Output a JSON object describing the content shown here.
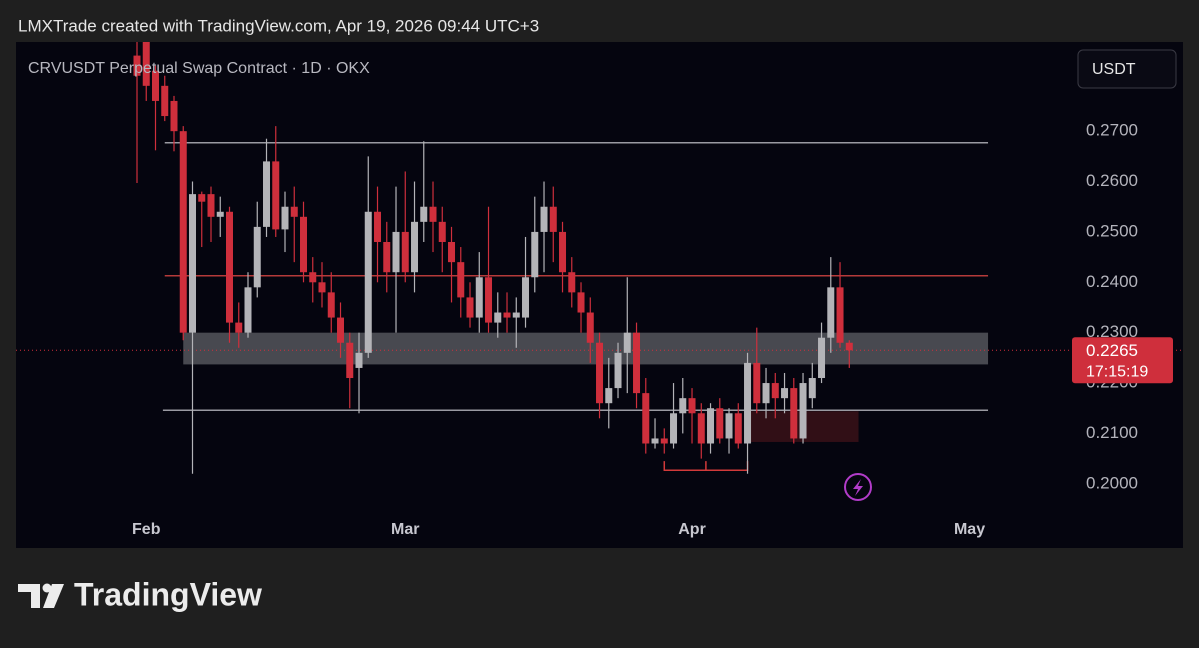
{
  "header": "LMXTrade created with TradingView.com, Apr 19, 2026 09:44 UTC+3",
  "footer": {
    "brand": "TradingView"
  },
  "chart_data": {
    "type": "candlestick",
    "title": "CRVUSDT Perpetual Swap Contract · 1D · OKX",
    "currency_button": "USDT",
    "up_color": "#b4b4b8",
    "down_color": "#cf2f3c",
    "open": [
      0.285,
      0.2877,
      0.282,
      0.279,
      0.276,
      0.27,
      0.23,
      0.2575,
      0.2575,
      0.253,
      0.254,
      0.232,
      0.23,
      0.239,
      0.251,
      0.264,
      0.2505,
      0.255,
      0.253,
      0.242,
      0.24,
      0.238,
      0.233,
      0.228,
      0.223,
      0.226,
      0.254,
      0.248,
      0.242,
      0.25,
      0.242,
      0.252,
      0.255,
      0.252,
      0.248,
      0.244,
      0.237,
      0.233,
      0.241,
      0.232,
      0.234,
      0.233,
      0.233,
      0.241,
      0.25,
      0.255,
      0.25,
      0.242,
      0.238,
      0.234,
      0.228,
      0.216,
      0.219,
      0.226,
      0.23,
      0.218,
      0.208,
      0.209,
      0.208,
      0.214,
      0.217,
      0.214,
      0.208,
      0.215,
      0.209,
      0.214,
      0.208,
      0.224,
      0.216,
      0.22,
      0.217,
      0.219,
      0.209,
      0.217,
      0.221,
      0.229,
      0.239,
      0.228
    ],
    "high": [
      0.2877,
      0.2877,
      0.283,
      0.281,
      0.277,
      0.271,
      0.26,
      0.258,
      0.259,
      0.257,
      0.255,
      0.236,
      0.242,
      0.256,
      0.2685,
      0.271,
      0.258,
      0.259,
      0.256,
      0.245,
      0.244,
      0.242,
      0.236,
      0.23,
      0.23,
      0.265,
      0.259,
      0.252,
      0.259,
      0.262,
      0.26,
      0.268,
      0.26,
      0.255,
      0.251,
      0.247,
      0.24,
      0.246,
      0.255,
      0.238,
      0.238,
      0.237,
      0.249,
      0.257,
      0.26,
      0.259,
      0.252,
      0.245,
      0.24,
      0.237,
      0.23,
      0.225,
      0.228,
      0.241,
      0.232,
      0.221,
      0.213,
      0.211,
      0.22,
      0.221,
      0.219,
      0.216,
      0.216,
      0.217,
      0.215,
      0.216,
      0.226,
      0.231,
      0.223,
      0.222,
      0.222,
      0.221,
      0.222,
      0.224,
      0.232,
      0.245,
      0.244,
      0.2285
    ],
    "low": [
      0.2597,
      0.276,
      0.2662,
      0.272,
      0.266,
      0.2285,
      0.202,
      0.247,
      0.248,
      0.249,
      0.228,
      0.227,
      0.229,
      0.237,
      0.249,
      0.249,
      0.246,
      0.244,
      0.24,
      0.236,
      0.235,
      0.23,
      0.225,
      0.215,
      0.214,
      0.225,
      0.24,
      0.238,
      0.23,
      0.24,
      0.238,
      0.248,
      0.246,
      0.242,
      0.236,
      0.233,
      0.231,
      0.23,
      0.23,
      0.229,
      0.23,
      0.227,
      0.231,
      0.238,
      0.242,
      0.244,
      0.238,
      0.235,
      0.23,
      0.224,
      0.213,
      0.211,
      0.217,
      0.218,
      0.215,
      0.206,
      0.207,
      0.206,
      0.207,
      0.21,
      0.208,
      0.205,
      0.206,
      0.208,
      0.206,
      0.207,
      0.202,
      0.214,
      0.213,
      0.213,
      0.214,
      0.208,
      0.208,
      0.215,
      0.22,
      0.226,
      0.227,
      0.223
    ],
    "close": [
      0.281,
      0.279,
      0.276,
      0.273,
      0.27,
      0.23,
      0.2575,
      0.256,
      0.253,
      0.254,
      0.232,
      0.23,
      0.239,
      0.251,
      0.264,
      0.2505,
      0.255,
      0.253,
      0.242,
      0.24,
      0.238,
      0.233,
      0.228,
      0.221,
      0.226,
      0.254,
      0.248,
      0.242,
      0.25,
      0.242,
      0.252,
      0.255,
      0.252,
      0.248,
      0.244,
      0.237,
      0.233,
      0.241,
      0.232,
      0.234,
      0.233,
      0.234,
      0.241,
      0.25,
      0.255,
      0.25,
      0.242,
      0.238,
      0.234,
      0.228,
      0.216,
      0.219,
      0.226,
      0.23,
      0.218,
      0.208,
      0.209,
      0.208,
      0.214,
      0.217,
      0.214,
      0.208,
      0.215,
      0.209,
      0.214,
      0.208,
      0.224,
      0.216,
      0.22,
      0.217,
      0.219,
      0.209,
      0.22,
      0.221,
      0.229,
      0.239,
      0.228,
      0.2265
    ],
    "xlim": [
      -13.08,
      100.86
    ],
    "xticks": [
      {
        "value": 1,
        "label": "Feb"
      },
      {
        "value": 29,
        "label": "Mar"
      },
      {
        "value": 60,
        "label": "Apr"
      },
      {
        "value": 90,
        "label": "May"
      }
    ],
    "ylim": [
      0.1948,
      0.2877
    ],
    "yticks": [
      {
        "value": 0.2,
        "label": "0.2000"
      },
      {
        "value": 0.21,
        "label": "0.2100"
      },
      {
        "value": 0.22,
        "label": "0.2200"
      },
      {
        "value": 0.23,
        "label": "0.2300"
      },
      {
        "value": 0.24,
        "label": "0.2400"
      },
      {
        "value": 0.25,
        "label": "0.2500"
      },
      {
        "value": 0.26,
        "label": "0.2600"
      },
      {
        "value": 0.27,
        "label": "0.2700"
      }
    ],
    "levels": [
      {
        "value": 0.2677,
        "from": 3,
        "to": 92,
        "color": "#9a9aa2"
      },
      {
        "value": 0.2413,
        "from": 3,
        "to": 92,
        "color": "#b53a3a"
      },
      {
        "value": 0.2146,
        "from": 2.8,
        "to": 92,
        "color": "#9a9aa2"
      }
    ],
    "zones": [
      {
        "low": 0.2237,
        "high": 0.23,
        "from": 5,
        "to": 92,
        "color": "#55565c"
      },
      {
        "low": 0.2083,
        "high": 0.2144,
        "from": 66,
        "to": 78,
        "color": "#3a1218"
      }
    ],
    "bracket": {
      "value": 0.2027,
      "top": 0.2045,
      "from": 57,
      "to": 66,
      "color": "#d23a3a"
    },
    "last_price": {
      "value": 0.2265,
      "label": "0.2265"
    },
    "countdown": "17:15:19"
  }
}
